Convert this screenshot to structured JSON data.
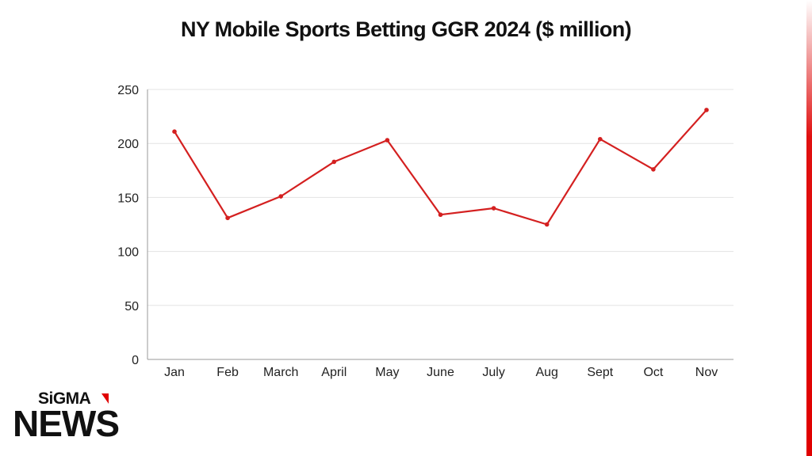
{
  "chart_data": {
    "type": "line",
    "title": "NY Mobile Sports Betting GGR 2024 ($ million)",
    "xlabel": "",
    "ylabel": "",
    "categories": [
      "Jan",
      "Feb",
      "March",
      "April",
      "May",
      "June",
      "July",
      "Aug",
      "Sept",
      "Oct",
      "Nov"
    ],
    "series": [
      {
        "values": [
          211,
          131,
          151,
          183,
          203,
          134,
          140,
          125,
          204,
          176,
          231
        ]
      }
    ],
    "ylim": [
      0,
      250
    ],
    "yticks": [
      0,
      50,
      100,
      150,
      200,
      250
    ],
    "grid": "horizontal",
    "legend": "none",
    "line_color": "#d42020"
  },
  "brand": {
    "top": "SiGMA",
    "bottom": "NEWS",
    "accent_color": "#e00000"
  }
}
